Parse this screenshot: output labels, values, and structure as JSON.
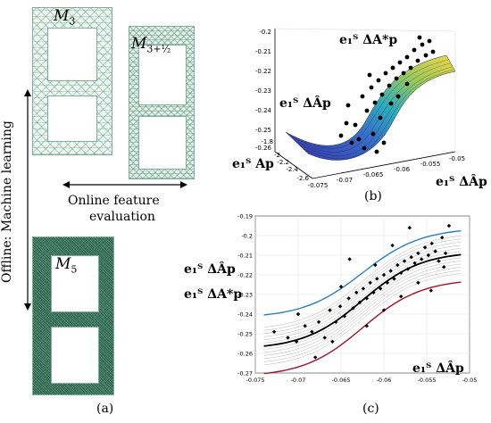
{
  "meshes": {
    "m3": {
      "base": "M",
      "sub": "3"
    },
    "m3half": {
      "base": "M",
      "sub": "3+½"
    },
    "m5": {
      "base": "M",
      "sub": "5"
    }
  },
  "labels": {
    "online": "Online feature",
    "online2": "evaluation",
    "offline": "Offline: Machine learning",
    "panel_a": "(a)",
    "panel_b": "(b)",
    "panel_c": "(c)"
  },
  "plot3d": {
    "z_ticks": [
      "-0.2",
      "-0.21",
      "-0.22",
      "-0.23",
      "-0.24",
      "-0.25",
      "-0.26"
    ],
    "x_ticks": [
      "-0.075",
      "-0.07",
      "-0.065",
      "-0.06",
      "-0.055",
      "-0.05"
    ],
    "y_ticks": [
      "-1.8",
      "-2",
      "-2.2",
      "-2.4",
      "-2.6"
    ],
    "lbl_star": "e₁ᵀ ΔA*p",
    "lbl_hat": "e₁ᵀ ΔÂp",
    "lbl_a": "e₁ᵀ Ap",
    "lbl_x": "e₁ᵀ ΔÂp"
  },
  "plot2d": {
    "y_ticks": [
      "-0.19",
      "-0.2",
      "-0.21",
      "-0.22",
      "-0.23",
      "-0.24",
      "-0.25",
      "-0.26",
      "-0.27"
    ],
    "x_ticks": [
      "-0.075",
      "-0.07",
      "-0.065",
      "-0.06",
      "-0.055",
      "-0.05"
    ],
    "lbl_hat": "e₁ᵀ ΔÂp",
    "lbl_star": "e₁ᵀ ΔA*p",
    "lbl_x": "e₁ᵀ ΔÂp",
    "colors": {
      "upper": "#2a7fc0",
      "lower": "#a0102a",
      "mean": "#000000",
      "band": "#b8b8b8"
    }
  },
  "chart_data": {
    "type": "scatter",
    "xlim": [
      -0.075,
      -0.05
    ],
    "ylim": [
      -0.27,
      -0.19
    ],
    "points": [
      [
        -0.0728,
        -0.249
      ],
      [
        -0.0712,
        -0.252
      ],
      [
        -0.0702,
        -0.254
      ],
      [
        -0.0692,
        -0.246
      ],
      [
        -0.0684,
        -0.249
      ],
      [
        -0.0676,
        -0.244
      ],
      [
        -0.0669,
        -0.252
      ],
      [
        -0.0663,
        -0.238
      ],
      [
        -0.0656,
        -0.244
      ],
      [
        -0.0651,
        -0.236
      ],
      [
        -0.0646,
        -0.241
      ],
      [
        -0.0641,
        -0.232
      ],
      [
        -0.0636,
        -0.237
      ],
      [
        -0.0632,
        -0.229
      ],
      [
        -0.0628,
        -0.234
      ],
      [
        -0.0624,
        -0.227
      ],
      [
        -0.062,
        -0.232
      ],
      [
        -0.0616,
        -0.224
      ],
      [
        -0.0612,
        -0.229
      ],
      [
        -0.0608,
        -0.222
      ],
      [
        -0.0604,
        -0.227
      ],
      [
        -0.06,
        -0.22
      ],
      [
        -0.0596,
        -0.224
      ],
      [
        -0.0592,
        -0.218
      ],
      [
        -0.0588,
        -0.222
      ],
      [
        -0.0584,
        -0.215
      ],
      [
        -0.058,
        -0.219
      ],
      [
        -0.0576,
        -0.213
      ],
      [
        -0.0572,
        -0.217
      ],
      [
        -0.0568,
        -0.211
      ],
      [
        -0.0564,
        -0.214
      ],
      [
        -0.056,
        -0.209
      ],
      [
        -0.0556,
        -0.212
      ],
      [
        -0.0552,
        -0.206
      ],
      [
        -0.0548,
        -0.21
      ],
      [
        -0.0544,
        -0.204
      ],
      [
        -0.054,
        -0.208
      ],
      [
        -0.0536,
        -0.213
      ],
      [
        -0.0532,
        -0.201
      ],
      [
        -0.0528,
        -0.209
      ],
      [
        -0.0524,
        -0.195
      ],
      [
        -0.062,
        -0.246
      ],
      [
        -0.064,
        -0.212
      ],
      [
        -0.06,
        -0.238
      ],
      [
        -0.058,
        -0.231
      ],
      [
        -0.065,
        -0.226
      ],
      [
        -0.056,
        -0.224
      ],
      [
        -0.053,
        -0.216
      ],
      [
        -0.059,
        -0.205
      ],
      [
        -0.066,
        -0.254
      ],
      [
        -0.068,
        -0.262
      ],
      [
        -0.057,
        -0.196
      ],
      [
        -0.0545,
        -0.228
      ],
      [
        -0.061,
        -0.215
      ],
      [
        -0.07,
        -0.24
      ]
    ],
    "upper": {
      "x0": -0.0625,
      "k": 290,
      "low": -0.242,
      "high": -0.196
    },
    "mean": {
      "x0": -0.0625,
      "k": 290,
      "low": -0.258,
      "high": -0.208
    },
    "lower": {
      "x0": -0.0625,
      "k": 290,
      "low": -0.272,
      "high": -0.222
    }
  }
}
